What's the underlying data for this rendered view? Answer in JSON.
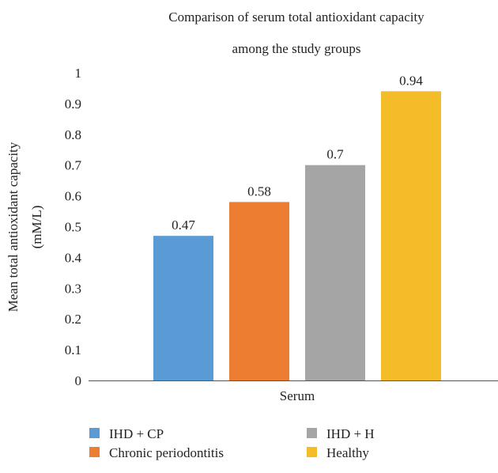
{
  "chart_data": {
    "type": "bar",
    "title_lines": [
      "Comparison of serum total antioxidant capacity",
      "among the study groups"
    ],
    "ylabel_lines": [
      "Mean total antioxidant capacity",
      "(mM/L)"
    ],
    "xlabel": "",
    "category": "Serum",
    "ylim": [
      0,
      1
    ],
    "ytick_labels": [
      "0",
      "0.1",
      "0.2",
      "0.3",
      "0.4",
      "0.5",
      "0.6",
      "0.7",
      "0.8",
      "0.9",
      "1"
    ],
    "series": [
      {
        "name": "IHD + CP",
        "value": 0.47,
        "label": "0.47",
        "color": "#5b9bd5"
      },
      {
        "name": "Chronic periodontitis",
        "value": 0.58,
        "label": "0.58",
        "color": "#ed7d31"
      },
      {
        "name": "IHD + H",
        "value": 0.7,
        "label": "0.7",
        "color": "#a5a5a5"
      },
      {
        "name": "Healthy",
        "value": 0.94,
        "label": "0.94",
        "color": "#f5bc2a"
      }
    ],
    "legend_position": "bottom",
    "grid": false
  }
}
